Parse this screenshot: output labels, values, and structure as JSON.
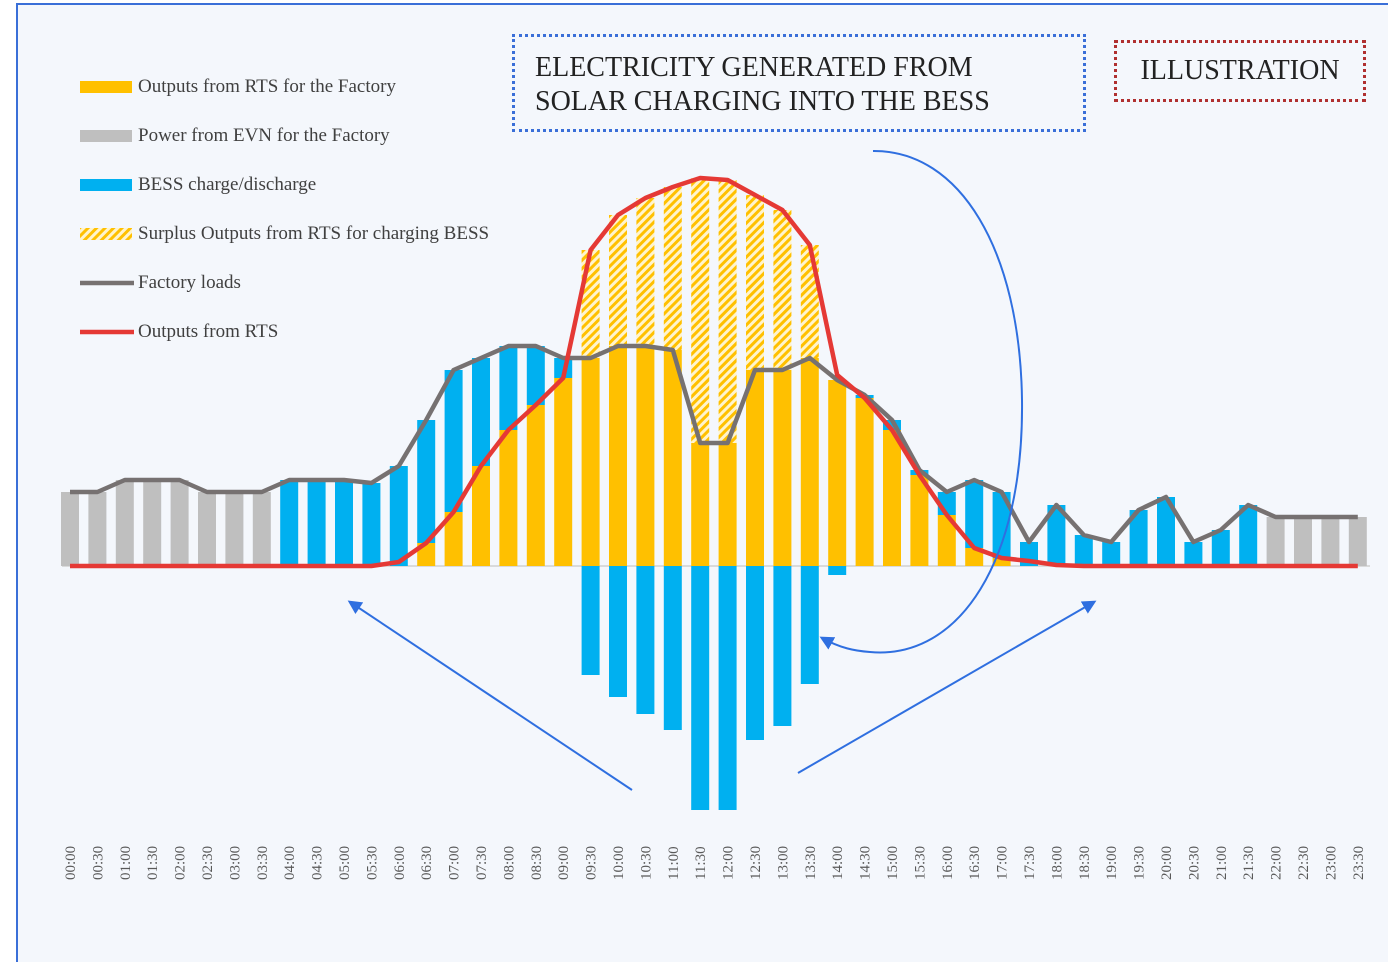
{
  "chart_data": {
    "type": "bar",
    "annotation": "ELECTRICITY GENERATED FROM SOLAR CHARGING INTO THE BESS",
    "badge": "ILLUSTRATION",
    "categories": [
      "00:00",
      "00:30",
      "01:00",
      "01:30",
      "02:00",
      "02:30",
      "03:00",
      "03:30",
      "04:00",
      "04:30",
      "05:00",
      "05:30",
      "06:00",
      "06:30",
      "07:00",
      "07:30",
      "08:00",
      "08:30",
      "09:00",
      "09:30",
      "10:00",
      "10:30",
      "11:00",
      "11:30",
      "12:00",
      "12:30",
      "13:00",
      "13:30",
      "14:00",
      "14:30",
      "15:00",
      "15:30",
      "16:00",
      "16:30",
      "17:00",
      "17:30",
      "18:00",
      "18:30",
      "19:00",
      "19:30",
      "20:00",
      "20:30",
      "21:00",
      "21:30",
      "22:00",
      "22:30",
      "23:00",
      "23:30"
    ],
    "ylim": [
      -26,
      42
    ],
    "series": [
      {
        "name": "Outputs from RTS for the Factory",
        "type": "bar",
        "color": "#ffc000",
        "values": [
          null,
          null,
          null,
          null,
          null,
          null,
          null,
          null,
          null,
          null,
          null,
          null,
          null,
          2.3,
          5.4,
          10.0,
          13.6,
          16.1,
          18.8,
          20.8,
          22.0,
          22.0,
          21.6,
          12.3,
          12.3,
          19.6,
          19.6,
          20.8,
          18.6,
          16.8,
          13.6,
          9.1,
          5.1,
          1.8,
          0.8,
          null,
          null,
          null,
          null,
          null,
          null,
          null,
          null,
          null,
          null,
          null,
          null,
          null
        ]
      },
      {
        "name": "Power from EVN for the Factory",
        "type": "bar",
        "color": "#bfbfbf",
        "values": [
          7.4,
          7.4,
          8.6,
          8.6,
          8.6,
          7.4,
          7.4,
          7.4,
          null,
          null,
          null,
          null,
          null,
          null,
          null,
          null,
          null,
          null,
          null,
          null,
          null,
          null,
          null,
          null,
          null,
          null,
          null,
          null,
          null,
          null,
          null,
          null,
          null,
          null,
          null,
          null,
          null,
          null,
          null,
          null,
          null,
          null,
          null,
          null,
          4.9,
          4.9,
          4.9,
          4.9
        ]
      },
      {
        "name": "BESS charge/discharge",
        "type": "bar",
        "color": "#00b0f0",
        "values": [
          null,
          null,
          null,
          null,
          null,
          null,
          null,
          null,
          8.6,
          8.6,
          8.6,
          8.3,
          10.0,
          12.3,
          14.2,
          10.8,
          8.4,
          5.9,
          2.0,
          -10.9,
          -13.1,
          -14.8,
          -16.4,
          -24.4,
          -24.4,
          -17.4,
          -16.0,
          -11.8,
          -0.9,
          0.3,
          1.0,
          0.5,
          2.3,
          6.8,
          6.6,
          2.4,
          6.1,
          3.1,
          2.4,
          5.6,
          6.9,
          2.4,
          3.6,
          6.1,
          null,
          null,
          null,
          null
        ]
      },
      {
        "name": "Surplus Outputs from RTS for charging BESS",
        "type": "bar",
        "color": "#ffc000",
        "pattern": "hatch",
        "values": [
          null,
          null,
          null,
          null,
          null,
          null,
          null,
          null,
          null,
          null,
          null,
          null,
          null,
          null,
          null,
          null,
          null,
          null,
          null,
          10.8,
          13.1,
          14.8,
          16.3,
          26.5,
          26.3,
          17.5,
          16.0,
          11.3,
          null,
          null,
          null,
          null,
          null,
          null,
          null,
          null,
          null,
          null,
          null,
          null,
          null,
          null,
          null,
          null,
          null,
          null,
          null,
          null
        ]
      },
      {
        "name": "Factory loads",
        "type": "line",
        "color": "#767171",
        "values": [
          7.4,
          7.4,
          8.6,
          8.6,
          8.6,
          7.4,
          7.4,
          7.4,
          8.6,
          8.6,
          8.6,
          8.3,
          10.0,
          14.6,
          19.6,
          20.8,
          22.0,
          22.0,
          20.8,
          20.8,
          22.0,
          22.0,
          21.6,
          12.3,
          12.3,
          19.6,
          19.6,
          20.8,
          18.6,
          17.1,
          14.6,
          9.6,
          7.4,
          8.6,
          7.4,
          2.4,
          6.1,
          3.1,
          2.4,
          5.6,
          6.9,
          2.4,
          3.6,
          6.1,
          4.9,
          4.9,
          4.9,
          4.9
        ]
      },
      {
        "name": "Outputs from RTS",
        "type": "line",
        "color": "#e53935",
        "values": [
          0,
          0,
          0,
          0,
          0,
          0,
          0,
          0,
          0,
          0,
          0,
          0,
          0.4,
          2.3,
          5.4,
          10.0,
          13.6,
          16.1,
          18.8,
          31.6,
          35.1,
          36.8,
          37.9,
          38.8,
          38.6,
          37.1,
          35.6,
          32.1,
          19.1,
          16.8,
          13.6,
          9.1,
          5.1,
          1.8,
          0.8,
          0.5,
          0.1,
          0,
          0,
          0,
          0,
          0,
          0,
          0,
          0,
          0,
          0,
          0
        ]
      }
    ]
  }
}
